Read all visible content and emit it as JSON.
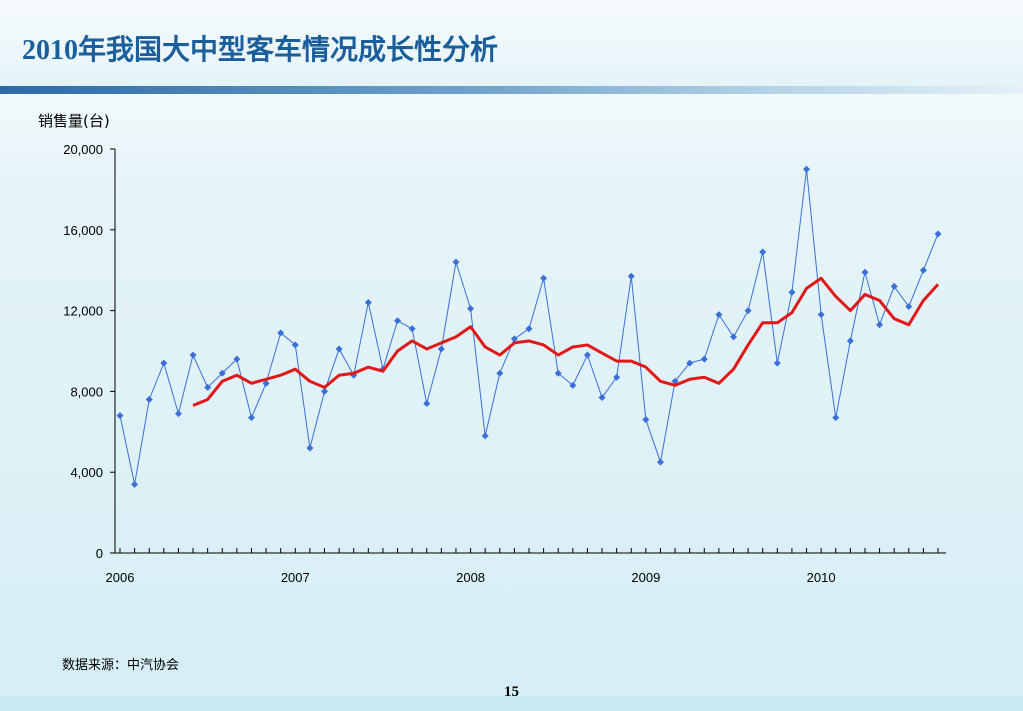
{
  "page": {
    "title": "2010年我国大中型客车情况成长性分析",
    "source": "数据来源：中汽协会",
    "page_number": "15"
  },
  "colors": {
    "title": "#1a5f9c",
    "raw_series": "#3a6fd8",
    "avg_series": "#e01818",
    "axis": "#000000"
  },
  "chart_data": {
    "type": "line",
    "ylabel": "销售量(台)",
    "ylim": [
      0,
      20000
    ],
    "yticks": [
      0,
      4000,
      8000,
      12000,
      16000,
      20000
    ],
    "ytick_labels": [
      "0",
      "4,000",
      "8,000",
      "12,000",
      "16,000",
      "20,000"
    ],
    "xtick_labels": [
      "2006",
      "2007",
      "2008",
      "2009",
      "2010"
    ],
    "months_total": 57,
    "series": [
      {
        "kind": "raw",
        "marker": "diamond",
        "values": [
          6800,
          3400,
          7600,
          9400,
          6900,
          9800,
          8200,
          8900,
          9600,
          6700,
          8400,
          10900,
          10300,
          5200,
          8000,
          10100,
          8800,
          12400,
          9100,
          11500,
          11100,
          7400,
          10100,
          14400,
          12100,
          5800,
          8900,
          10600,
          11100,
          13600,
          8900,
          8300,
          9800,
          7700,
          8700,
          13700,
          6600,
          4500,
          8500,
          9400,
          9600,
          11800,
          10700,
          12000,
          14900,
          9400,
          12900,
          19000,
          11800,
          6700,
          10500,
          13900,
          11300,
          13200,
          12200,
          14000,
          15800
        ]
      },
      {
        "kind": "average",
        "start_index": 5,
        "values": [
          7300,
          7600,
          8500,
          8800,
          8400,
          8600,
          8800,
          9100,
          8500,
          8200,
          8800,
          8900,
          9200,
          9000,
          10000,
          10500,
          10100,
          10400,
          10700,
          11200,
          10200,
          9800,
          10400,
          10500,
          10300,
          9800,
          10200,
          10300,
          9900,
          9500,
          9500,
          9200,
          8500,
          8300,
          8600,
          8700,
          8400,
          9100,
          10300,
          11400,
          11400,
          11900,
          13100,
          13600,
          12700,
          12000,
          12800,
          12500,
          11600,
          11300,
          12500,
          13300
        ]
      }
    ]
  }
}
